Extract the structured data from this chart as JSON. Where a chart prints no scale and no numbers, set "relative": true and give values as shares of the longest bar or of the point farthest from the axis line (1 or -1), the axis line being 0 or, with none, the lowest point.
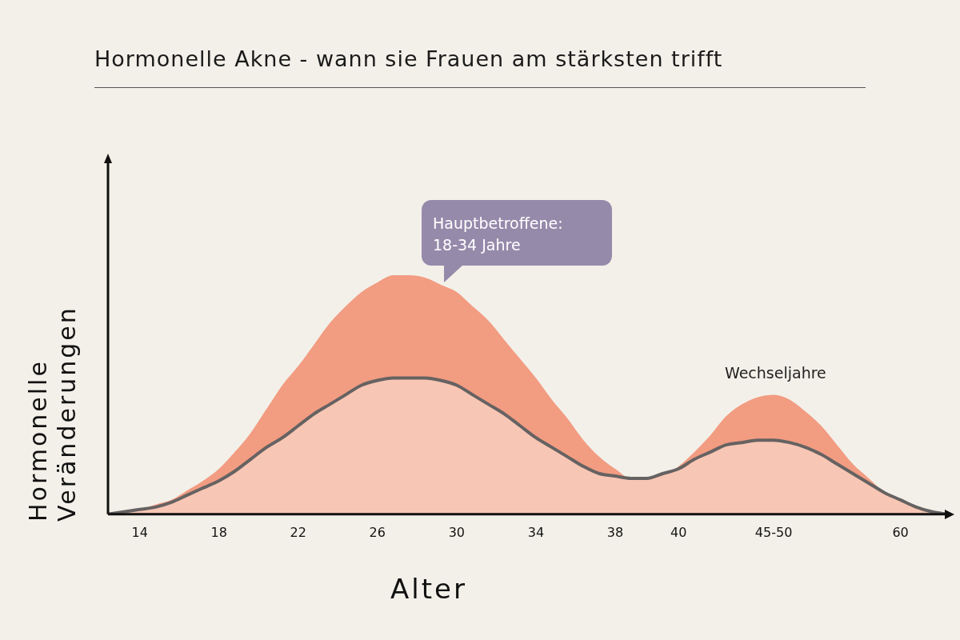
{
  "chart_data": {
    "type": "area",
    "title": "Hormonelle Akne - wann sie Frauen am stärksten trifft",
    "xlabel": "Alter",
    "ylabel": "Hormonelle Veränderungen",
    "relative": true,
    "grid": false,
    "legend": false,
    "tick_labels": "x",
    "marker": "none",
    "categories": [
      null,
      null,
      "14",
      null,
      null,
      null,
      null,
      "18",
      null,
      null,
      null,
      null,
      "22",
      null,
      null,
      null,
      null,
      "26",
      null,
      null,
      null,
      null,
      "30",
      null,
      null,
      null,
      null,
      "34",
      null,
      null,
      null,
      null,
      "38",
      null,
      null,
      null,
      "40",
      null,
      null,
      null,
      null,
      null,
      "45-50",
      null,
      null,
      null,
      null,
      null,
      null,
      null,
      "60",
      null,
      null,
      null
    ],
    "series": [
      {
        "color": "#f29c82",
        "values": [
          0,
          0.01,
          0.02,
          0.04,
          0.06,
          0.1,
          0.14,
          0.19,
          0.26,
          0.34,
          0.44,
          0.54,
          0.62,
          0.71,
          0.8,
          0.87,
          0.93,
          0.97,
          1,
          1,
          0.99,
          0.96,
          0.93,
          0.87,
          0.81,
          0.73,
          0.65,
          0.57,
          0.48,
          0.4,
          0.31,
          0.24,
          0.19,
          0.15,
          0.15,
          0.16,
          0.2,
          0.26,
          0.33,
          0.41,
          0.46,
          0.49,
          0.5,
          0.48,
          0.43,
          0.37,
          0.29,
          0.21,
          0.15,
          0.09,
          0.05,
          0.02,
          0.01,
          0
        ]
      },
      {
        "color": "#f8c6b4",
        "values": [
          0,
          0.01,
          0.02,
          0.03,
          0.05,
          0.08,
          0.11,
          0.14,
          0.18,
          0.23,
          0.28,
          0.32,
          0.37,
          0.42,
          0.46,
          0.5,
          0.54,
          0.56,
          0.57,
          0.57,
          0.57,
          0.56,
          0.54,
          0.5,
          0.46,
          0.42,
          0.37,
          0.32,
          0.28,
          0.24,
          0.2,
          0.17,
          0.16,
          0.15,
          0.15,
          0.17,
          0.19,
          0.23,
          0.26,
          0.29,
          0.3,
          0.31,
          0.31,
          0.3,
          0.28,
          0.25,
          0.21,
          0.17,
          0.13,
          0.09,
          0.06,
          0.03,
          0.01,
          0
        ]
      }
    ],
    "annotations": [
      "Hauptbetroffene:\n18-34 Jahre",
      "Wechseljahre"
    ]
  }
}
